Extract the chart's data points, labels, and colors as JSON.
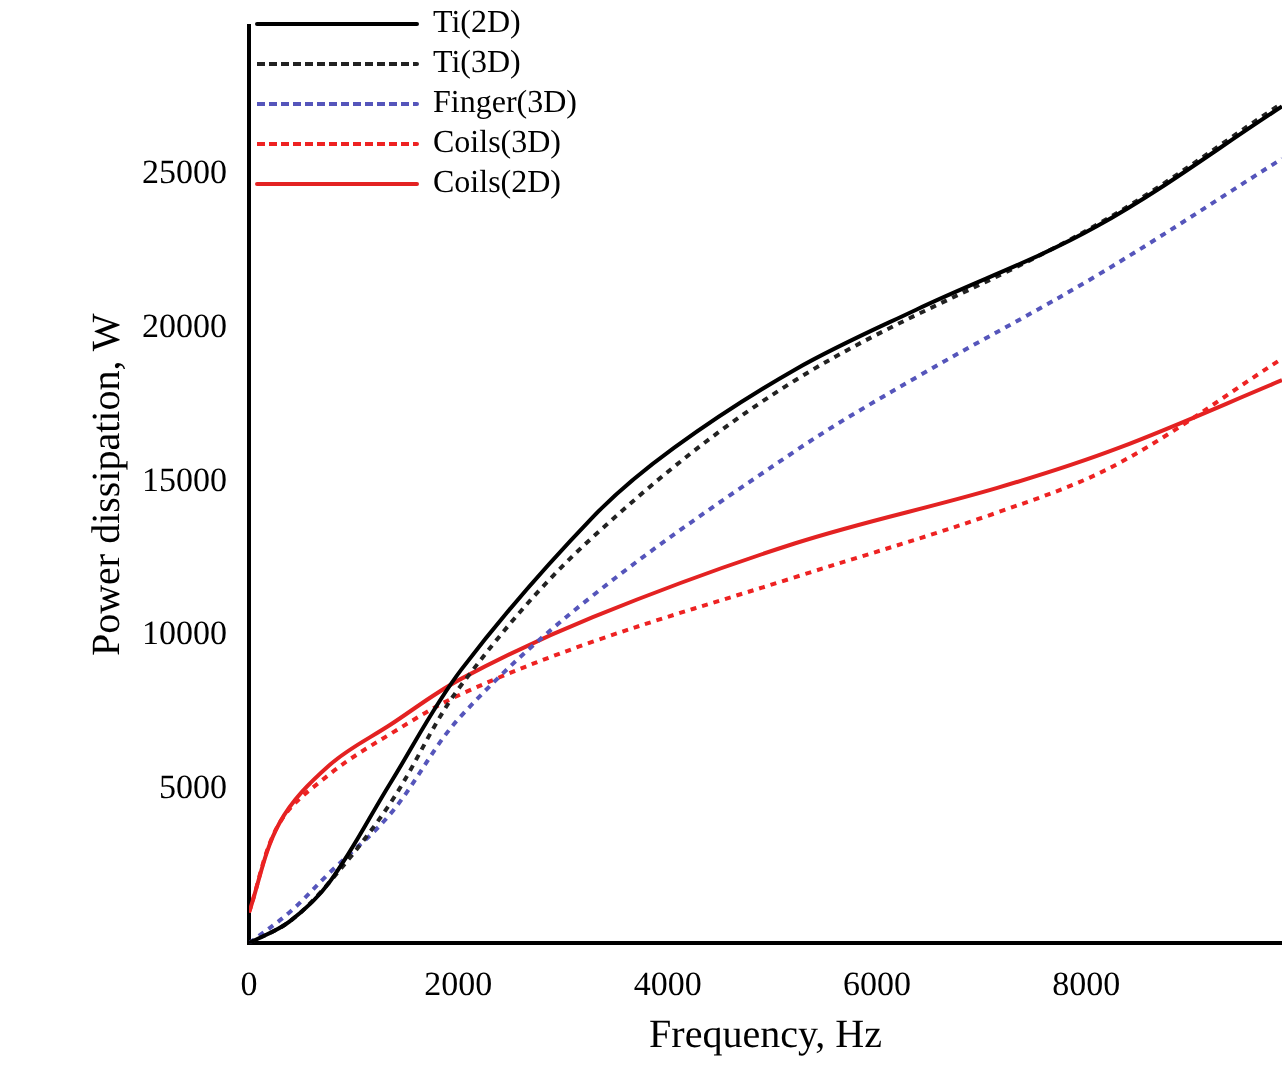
{
  "chart_data": {
    "type": "line",
    "xlabel": "Frequency, Hz",
    "ylabel": "Power dissipation, W",
    "xlim": [
      0,
      9870
    ],
    "ylim": [
      0,
      29800
    ],
    "xticks": [
      0,
      2000,
      4000,
      6000,
      8000
    ],
    "yticks": [
      5000,
      10000,
      15000,
      20000,
      25000
    ],
    "grid": false,
    "legend": "top left",
    "marker": "none",
    "series": [
      {
        "name": "Ti(2D)",
        "color": "#000000",
        "line_style": "solid",
        "x": [
          0,
          386,
          773,
          1350,
          2030,
          3285,
          4060,
          5220,
          6380,
          8100,
          9870
        ],
        "values": [
          0,
          700,
          2000,
          5200,
          8900,
          13850,
          16100,
          18650,
          20600,
          23300,
          27200
        ]
      },
      {
        "name": "Ti(3D)",
        "color": "#222222",
        "line_style": "dotted",
        "x": [
          0,
          386,
          773,
          1350,
          2030,
          3285,
          5220,
          8100,
          9870
        ],
        "values": [
          0,
          700,
          2000,
          4550,
          8400,
          13200,
          18300,
          23350,
          27300
        ]
      },
      {
        "name": "Finger(3D)",
        "color": "#5555bb",
        "line_style": "dotted",
        "x": [
          0,
          386,
          773,
          1350,
          2030,
          3285,
          5220,
          6380,
          8100,
          9870
        ],
        "values": [
          0,
          1000,
          2300,
          4200,
          7400,
          11300,
          16000,
          18400,
          21700,
          25500
        ]
      },
      {
        "name": "Coils(3D)",
        "color": "#ee2222",
        "line_style": "dotted",
        "x": [
          0,
          290,
          773,
          1350,
          2030,
          3285,
          5220,
          7150,
          8310,
          9870
        ],
        "values": [
          1000,
          3900,
          5500,
          6800,
          8100,
          9800,
          11900,
          14000,
          15600,
          19000
        ]
      },
      {
        "name": "Coils(2D)",
        "color": "#e32222",
        "line_style": "solid",
        "x": [
          0,
          290,
          773,
          1350,
          2030,
          3285,
          5220,
          7150,
          8310,
          9870
        ],
        "values": [
          1000,
          3900,
          5800,
          7100,
          8600,
          10600,
          13000,
          14800,
          16100,
          18300
        ]
      }
    ]
  }
}
